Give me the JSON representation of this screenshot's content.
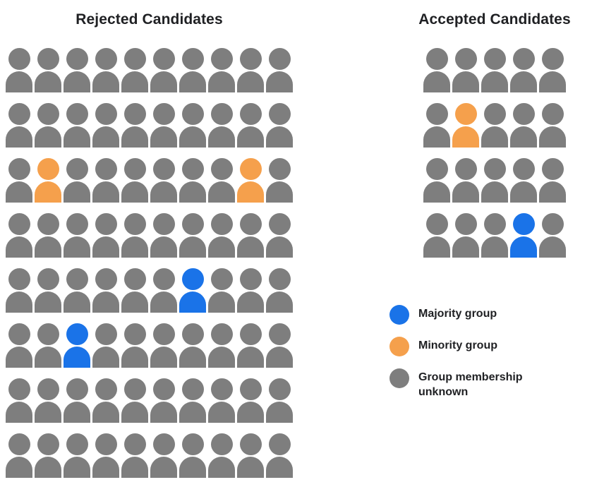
{
  "colors": {
    "majority": "#1A73E8",
    "minority": "#F5A04C",
    "unknown": "#7E7E7E"
  },
  "chart_data": [
    {
      "type": "pictogram",
      "title": "Rejected Candidates",
      "rows": 8,
      "columns": 10,
      "total_icons": 80,
      "counts": {
        "majority": 2,
        "minority": 2,
        "unknown": 76
      },
      "grid": [
        [
          "unknown",
          "unknown",
          "unknown",
          "unknown",
          "unknown",
          "unknown",
          "unknown",
          "unknown",
          "unknown",
          "unknown"
        ],
        [
          "unknown",
          "unknown",
          "unknown",
          "unknown",
          "unknown",
          "unknown",
          "unknown",
          "unknown",
          "unknown",
          "unknown"
        ],
        [
          "unknown",
          "minority",
          "unknown",
          "unknown",
          "unknown",
          "unknown",
          "unknown",
          "unknown",
          "minority",
          "unknown"
        ],
        [
          "unknown",
          "unknown",
          "unknown",
          "unknown",
          "unknown",
          "unknown",
          "unknown",
          "unknown",
          "unknown",
          "unknown"
        ],
        [
          "unknown",
          "unknown",
          "unknown",
          "unknown",
          "unknown",
          "unknown",
          "majority",
          "unknown",
          "unknown",
          "unknown"
        ],
        [
          "unknown",
          "unknown",
          "majority",
          "unknown",
          "unknown",
          "unknown",
          "unknown",
          "unknown",
          "unknown",
          "unknown"
        ],
        [
          "unknown",
          "unknown",
          "unknown",
          "unknown",
          "unknown",
          "unknown",
          "unknown",
          "unknown",
          "unknown",
          "unknown"
        ],
        [
          "unknown",
          "unknown",
          "unknown",
          "unknown",
          "unknown",
          "unknown",
          "unknown",
          "unknown",
          "unknown",
          "unknown"
        ]
      ]
    },
    {
      "type": "pictogram",
      "title": "Accepted Candidates",
      "rows": 4,
      "columns": 5,
      "total_icons": 20,
      "counts": {
        "majority": 1,
        "minority": 1,
        "unknown": 18
      },
      "grid": [
        [
          "unknown",
          "unknown",
          "unknown",
          "unknown",
          "unknown"
        ],
        [
          "unknown",
          "minority",
          "unknown",
          "unknown",
          "unknown"
        ],
        [
          "unknown",
          "unknown",
          "unknown",
          "unknown",
          "unknown"
        ],
        [
          "unknown",
          "unknown",
          "unknown",
          "majority",
          "unknown"
        ]
      ]
    }
  ],
  "legend": {
    "items": [
      {
        "key": "majority",
        "label": "Majority group",
        "color": "#1A73E8"
      },
      {
        "key": "minority",
        "label": "Minority group",
        "color": "#F5A04C"
      },
      {
        "key": "unknown",
        "label": "Group membership unknown",
        "color": "#7E7E7E"
      }
    ]
  }
}
